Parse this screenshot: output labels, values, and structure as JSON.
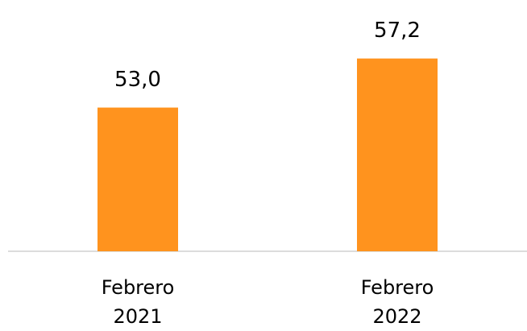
{
  "chart_data": {
    "type": "bar",
    "categories": [
      "Febrero 2021",
      "Febrero 2022"
    ],
    "values": [
      53.0,
      57.2
    ],
    "value_labels": [
      "53,0",
      "57,2"
    ],
    "color": "#ff931e",
    "ylim": [
      40.7,
      62
    ]
  }
}
